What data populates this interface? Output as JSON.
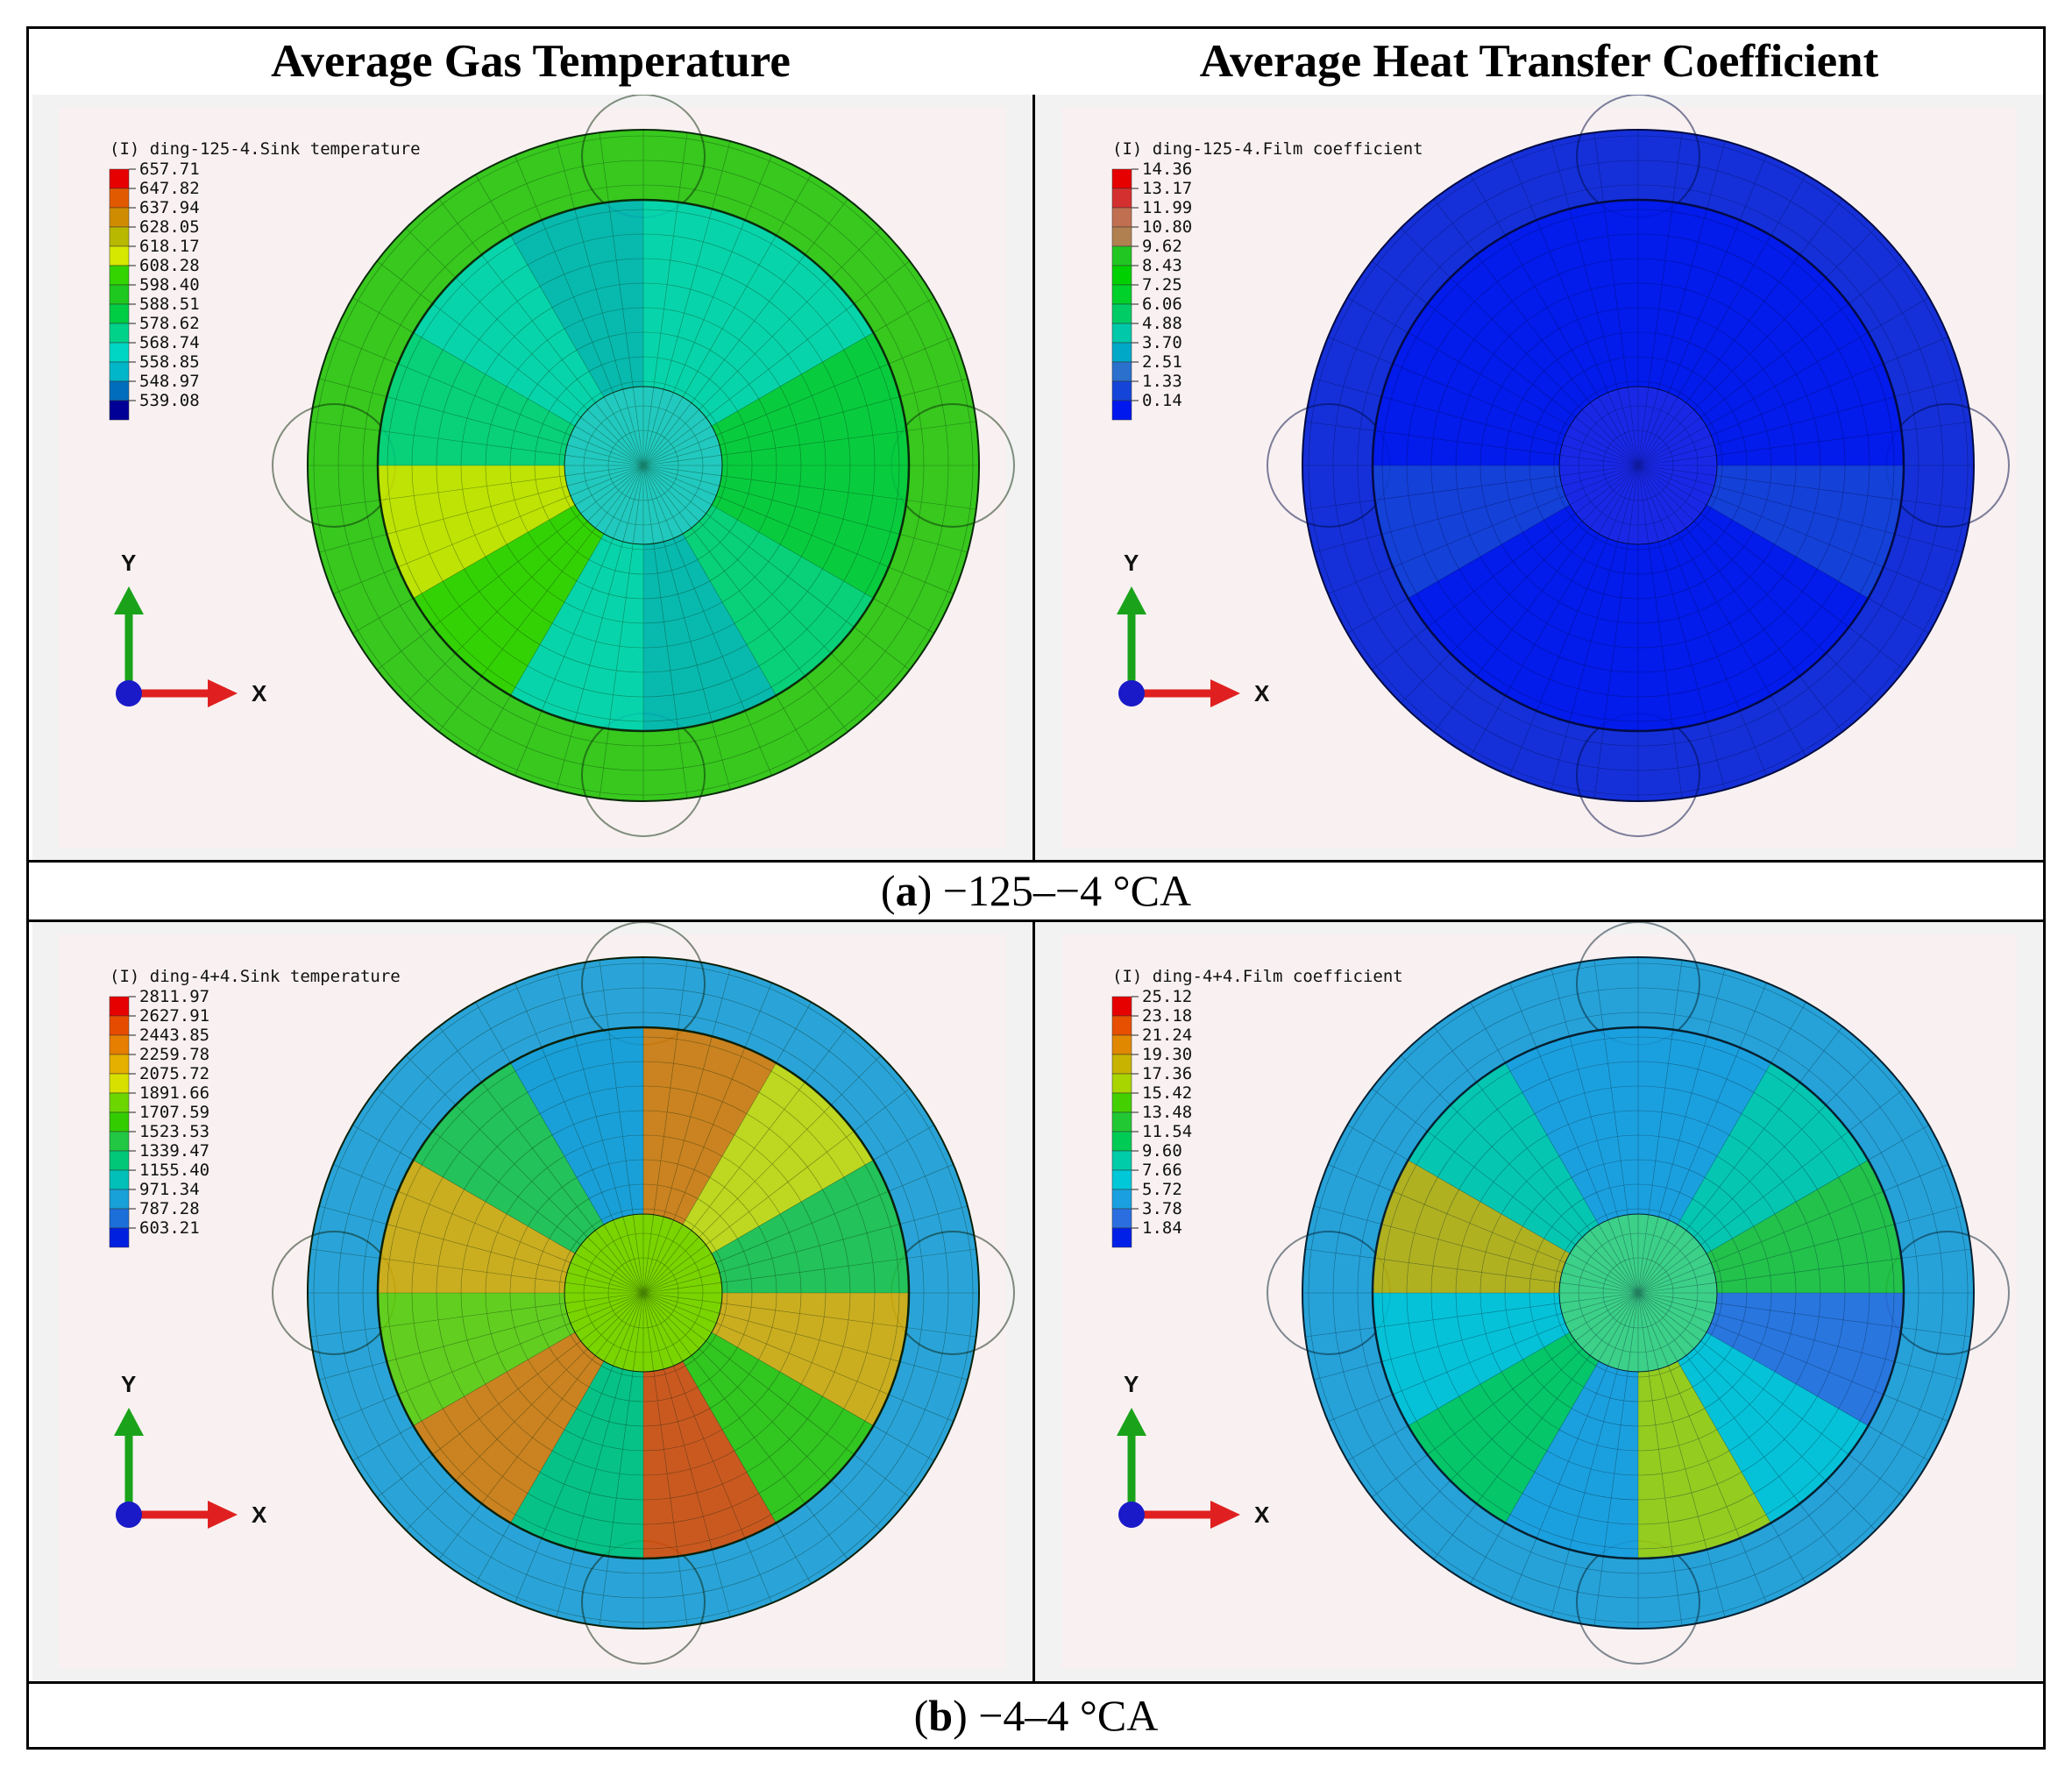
{
  "headers": {
    "left": "Average Gas Temperature",
    "right": "Average Heat Transfer Coefficient"
  },
  "rows": [
    {
      "caption_label": "a",
      "caption_text": " −125–−4 °CA",
      "panels": [
        {
          "legend_title": "(I) ding-125-4.Sink temperature",
          "values": [
            "657.71",
            "647.82",
            "637.94",
            "628.05",
            "618.17",
            "608.28",
            "598.40",
            "588.51",
            "578.62",
            "568.74",
            "558.85",
            "548.97",
            "539.08"
          ],
          "colors": [
            "#e60000",
            "#e25a00",
            "#d08c00",
            "#b8b800",
            "#d6e800",
            "#33d400",
            "#1ec81e",
            "#00cc44",
            "#00d28a",
            "#00d6c4",
            "#00b6c8",
            "#006cbc",
            "#000096"
          ],
          "base": "#38c81e",
          "center": "#22c9bf",
          "mesh": "#0a2a0a",
          "axis_y": "Y",
          "axis_x": "X"
        },
        {
          "legend_title": "(I) ding-125-4.Film coefficient",
          "values": [
            "14.36",
            "13.17",
            "11.99",
            "10.80",
            "9.62",
            "8.43",
            "7.25",
            "6.06",
            "4.88",
            "3.70",
            "2.51",
            "1.33",
            "0.14"
          ],
          "colors": [
            "#e60000",
            "#d43030",
            "#c07050",
            "#b08050",
            "#22c622",
            "#00d000",
            "#00d02a",
            "#00cc66",
            "#00c8a8",
            "#00a8c8",
            "#2a70cc",
            "#1444d8",
            "#0018ee"
          ],
          "base": "#1530d8",
          "center": "#1a28e6",
          "mesh": "#000a44",
          "axis_y": "Y",
          "axis_x": "X"
        }
      ]
    },
    {
      "caption_label": "b",
      "caption_text": " −4–4 °CA",
      "panels": [
        {
          "legend_title": "(I) ding-4+4.Sink temperature",
          "values": [
            "2811.97",
            "2627.91",
            "2443.85",
            "2259.78",
            "2075.72",
            "1891.66",
            "1707.59",
            "1523.53",
            "1339.47",
            "1155.40",
            "971.34",
            "787.28",
            "603.21"
          ],
          "colors": [
            "#e60000",
            "#e64c00",
            "#e67e00",
            "#e6b000",
            "#d8e000",
            "#6cd600",
            "#33cc00",
            "#22c844",
            "#00c878",
            "#00c0b8",
            "#18a0d8",
            "#1c6ed8",
            "#0020e0"
          ],
          "base": "#2aa4d8",
          "center": "#7ad400",
          "mesh": "#0a200a",
          "axis_y": "Y",
          "axis_x": "X"
        },
        {
          "legend_title": "(I) ding-4+4.Film coefficient",
          "values": [
            "25.12",
            "23.18",
            "21.24",
            "19.30",
            "17.36",
            "15.42",
            "13.48",
            "11.54",
            "9.60",
            "7.66",
            "5.72",
            "3.78",
            "1.84"
          ],
          "colors": [
            "#e60000",
            "#e65000",
            "#e08800",
            "#c8b400",
            "#a8d400",
            "#44d000",
            "#22c833",
            "#00cc55",
            "#00ccaa",
            "#00c8d8",
            "#1aa0e0",
            "#2a6ee0",
            "#0020e8"
          ],
          "base": "#26a2d8",
          "center": "#3cd088",
          "mesh": "#062030",
          "axis_y": "Y",
          "axis_x": "X"
        }
      ]
    }
  ]
}
